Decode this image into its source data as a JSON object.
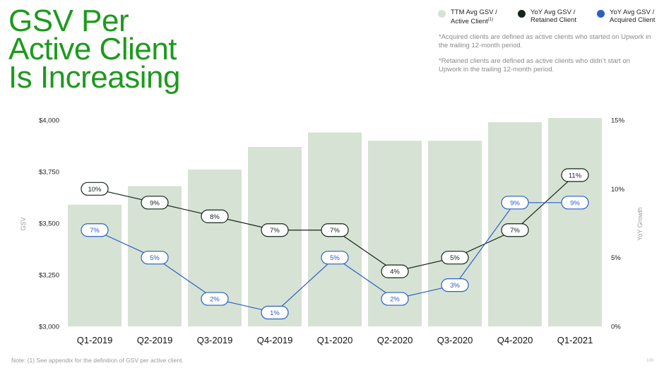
{
  "title": {
    "line1": "GSV Per",
    "line2": "Active Client",
    "line3": "Is Increasing"
  },
  "legend": [
    {
      "line1": "TTM Avg GSV /",
      "line2": "Active Client",
      "sup": "(1)",
      "color": "#d6e2d4"
    },
    {
      "line1": "YoY Avg GSV /",
      "line2": "Retained Client",
      "color": "#14261a"
    },
    {
      "line1": "YoY Avg GSV /",
      "line2": "Acquired Client",
      "color": "#2b5fc4"
    }
  ],
  "notes": [
    "*Acquired clients are defined as active clients who started on Upwork in the trailing 12-month period.",
    "*Retained clients are defined as active clients who didn’t start on Upwork in the trailing 12-month period."
  ],
  "footnote": "Note: (1) See appendix for the definition of GSV per active client.",
  "page_number": "100",
  "colors": {
    "bar": "#d6e2d4",
    "retained": "#14261a",
    "acquired": "#2b5fc4",
    "title": "#1d9a1d"
  },
  "chart_data": {
    "type": "bar",
    "categories": [
      "Q1-2019",
      "Q2-2019",
      "Q3-2019",
      "Q4-2019",
      "Q1-2020",
      "Q2-2020",
      "Q3-2020",
      "Q4-2020",
      "Q1-2021"
    ],
    "ylabel": "GSV",
    "y2label": "YoY Growth",
    "ylim": [
      3000,
      4000
    ],
    "y2lim": [
      0,
      15
    ],
    "yticks": [
      "$4,000",
      "$3,750",
      "$3,500",
      "$3,250",
      "$3,000"
    ],
    "y2ticks": [
      "15%",
      "10%",
      "5%",
      "0%"
    ],
    "bars": {
      "name": "TTM Avg GSV / Active Client",
      "values": [
        3590,
        3680,
        3760,
        3870,
        3940,
        3900,
        3900,
        3990,
        4010
      ]
    },
    "series": [
      {
        "name": "YoY Avg GSV / Retained Client",
        "type": "line",
        "axis": "right",
        "values": [
          10,
          9,
          8,
          7,
          7,
          4,
          5,
          7,
          11
        ],
        "labels": [
          "10%",
          "9%",
          "8%",
          "7%",
          "7%",
          "4%",
          "5%",
          "7%",
          "11%"
        ]
      },
      {
        "name": "YoY Avg GSV / Acquired Client",
        "type": "line",
        "axis": "right",
        "values": [
          7,
          5,
          2,
          1,
          5,
          2,
          3,
          9,
          9
        ],
        "labels": [
          "7%",
          "5%",
          "2%",
          "1%",
          "5%",
          "2%",
          "3%",
          "9%",
          "9%"
        ]
      }
    ],
    "grid": false,
    "legend_position": "top-right"
  }
}
